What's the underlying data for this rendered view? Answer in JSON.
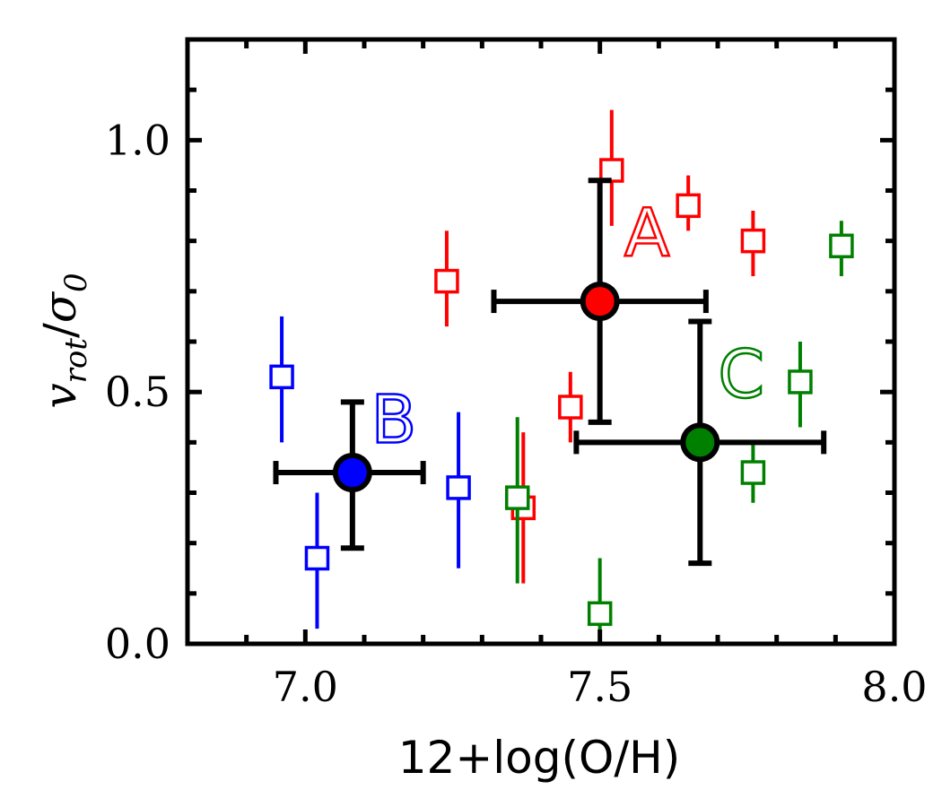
{
  "chart_data": {
    "type": "scatter",
    "xlabel": "12+log(O/H)",
    "ylabel": {
      "main": "v",
      "sub": "rot",
      "sep": "/",
      "main2": "σ",
      "sub2": "0"
    },
    "xlim": [
      6.8,
      8.0
    ],
    "ylim": [
      0.0,
      1.2
    ],
    "xticks": [
      7.0,
      7.5,
      8.0
    ],
    "xtick_labels": [
      "7.0",
      "7.5",
      "8.0"
    ],
    "yticks": [
      0.0,
      0.5,
      1.0
    ],
    "ytick_labels": [
      "0.0",
      "0.5",
      "1.0"
    ],
    "series": [
      {
        "color": "#ff0000",
        "marker": "open-square",
        "points": [
          {
            "x": 7.52,
            "y": 0.94,
            "ylo": 0.83,
            "yhi": 1.06
          },
          {
            "x": 7.65,
            "y": 0.87,
            "ylo": 0.82,
            "yhi": 0.93
          },
          {
            "x": 7.76,
            "y": 0.8,
            "ylo": 0.73,
            "yhi": 0.86
          },
          {
            "x": 7.24,
            "y": 0.72,
            "ylo": 0.63,
            "yhi": 0.82
          },
          {
            "x": 7.45,
            "y": 0.47,
            "ylo": 0.4,
            "yhi": 0.54
          },
          {
            "x": 7.37,
            "y": 0.27,
            "ylo": 0.12,
            "yhi": 0.42
          }
        ]
      },
      {
        "color": "#0000ff",
        "marker": "open-square",
        "points": [
          {
            "x": 6.96,
            "y": 0.53,
            "ylo": 0.4,
            "yhi": 0.65
          },
          {
            "x": 7.26,
            "y": 0.31,
            "ylo": 0.15,
            "yhi": 0.46
          },
          {
            "x": 7.02,
            "y": 0.17,
            "ylo": 0.03,
            "yhi": 0.3
          }
        ]
      },
      {
        "color": "#008000",
        "marker": "open-square",
        "points": [
          {
            "x": 7.91,
            "y": 0.79,
            "ylo": 0.73,
            "yhi": 0.84
          },
          {
            "x": 7.84,
            "y": 0.52,
            "ylo": 0.43,
            "yhi": 0.6
          },
          {
            "x": 7.76,
            "y": 0.34,
            "ylo": 0.28,
            "yhi": 0.4
          },
          {
            "x": 7.36,
            "y": 0.29,
            "ylo": 0.12,
            "yhi": 0.45
          },
          {
            "x": 7.5,
            "y": 0.06,
            "ylo": 0.0,
            "yhi": 0.17
          }
        ]
      }
    ],
    "group_means": [
      {
        "label": "A",
        "color": "#ff0000",
        "x": 7.5,
        "y": 0.68,
        "xlo": 7.32,
        "xhi": 7.68,
        "ylo": 0.44,
        "yhi": 0.92
      },
      {
        "label": "B",
        "color": "#0000ff",
        "x": 7.08,
        "y": 0.34,
        "xlo": 6.95,
        "xhi": 7.2,
        "ylo": 0.19,
        "yhi": 0.48
      },
      {
        "label": "C",
        "color": "#008000",
        "x": 7.67,
        "y": 0.4,
        "xlo": 7.46,
        "xhi": 7.88,
        "ylo": 0.16,
        "yhi": 0.64
      }
    ],
    "errorbar_color": "#000000",
    "grid": false,
    "legend": "none"
  }
}
